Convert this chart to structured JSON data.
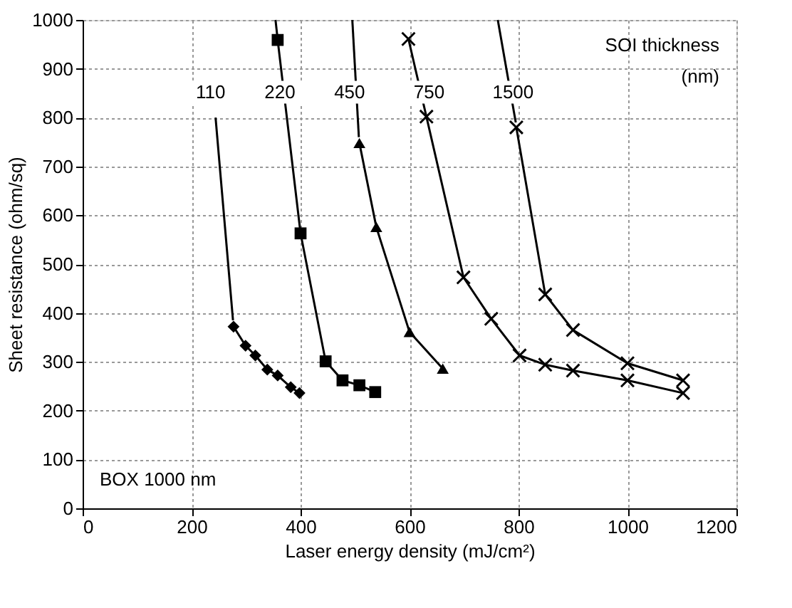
{
  "chart_data": {
    "type": "line",
    "xlabel": "Laser energy density (mJ/cm²)",
    "ylabel": "Sheet resistance (ohm/sq)",
    "xlim": [
      0,
      1200
    ],
    "xticks": [
      0,
      200,
      400,
      600,
      800,
      1000,
      1200
    ],
    "ylim": [
      0,
      1000
    ],
    "yticks": [
      0,
      100,
      200,
      300,
      400,
      500,
      600,
      700,
      800,
      900,
      1000
    ],
    "grid": true,
    "line_style": "solid",
    "series": [
      {
        "marker": "none",
        "color": "#000000",
        "x": [
          244,
          276
        ],
        "values": [
          800,
          385
        ]
      },
      {
        "marker": "none",
        "color": "#000000",
        "x": [
          354,
          357
        ],
        "values": [
          1000,
          970
        ]
      },
      {
        "marker": "none",
        "color": "#000000",
        "x": [
          495,
          507
        ],
        "values": [
          1000,
          760
        ]
      },
      {
        "marker": "none",
        "color": "#000000",
        "x": [
          762,
          795
        ],
        "values": [
          1000,
          790
        ]
      },
      {
        "marker": "diamond",
        "color": "#000000",
        "x": [
          277,
          299,
          317,
          339,
          358,
          382,
          398
        ],
        "values": [
          372,
          333,
          313,
          284,
          272,
          248,
          236
        ]
      },
      {
        "marker": "square",
        "color": "#000000",
        "x": [
          358,
          400,
          446,
          477,
          508,
          537
        ],
        "values": [
          959,
          563,
          301,
          262,
          252,
          238
        ]
      },
      {
        "marker": "triangle",
        "color": "#000000",
        "x": [
          508,
          539,
          600,
          661
        ],
        "values": [
          748,
          576,
          361,
          286
        ]
      },
      {
        "marker": "cross",
        "color": "#000000",
        "x": [
          598,
          631,
          699,
          750,
          802,
          849,
          900,
          1000,
          1102
        ],
        "values": [
          961,
          802,
          473,
          388,
          313,
          294,
          282,
          262,
          236
        ]
      },
      {
        "marker": "cross",
        "color": "#000000",
        "x": [
          796,
          849,
          900,
          1000,
          1102
        ],
        "values": [
          780,
          438,
          365,
          297,
          262
        ]
      }
    ],
    "annotations": [
      {
        "text": "110",
        "x": 235,
        "y": 852
      },
      {
        "text": "220",
        "x": 362,
        "y": 852
      },
      {
        "text": "450",
        "x": 490,
        "y": 852
      },
      {
        "text": "750",
        "x": 636,
        "y": 852
      },
      {
        "text": "1500",
        "x": 790,
        "y": 852
      },
      "SOI thickness (nm)",
      "BOX 1000 nm"
    ]
  }
}
